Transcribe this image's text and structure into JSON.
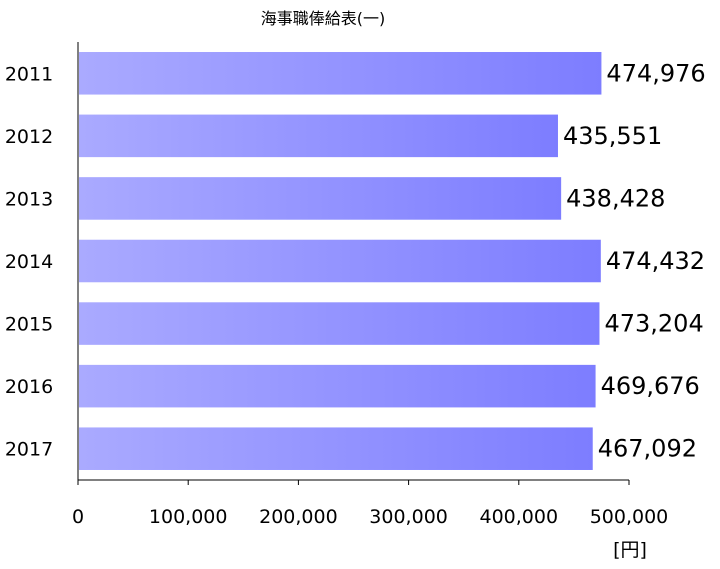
{
  "chart_data": {
    "type": "bar",
    "orientation": "horizontal",
    "title": "海事職俸給表(一)",
    "categories": [
      "2011",
      "2012",
      "2013",
      "2014",
      "2015",
      "2016",
      "2017"
    ],
    "values": [
      474976,
      435551,
      438428,
      474432,
      473204,
      469676,
      467092
    ],
    "value_labels": [
      "474,976",
      "435,551",
      "438,428",
      "474,432",
      "473,204",
      "469,676",
      "467,092"
    ],
    "x_ticks": [
      "0",
      "100,000",
      "200,000",
      "300,000",
      "400,000",
      "500,000"
    ],
    "xlim": [
      0,
      500000
    ],
    "x_unit": "[円]",
    "xlabel": "",
    "ylabel": "",
    "grid": false,
    "bar_color_start": "#aaaaff",
    "bar_color_end": "#7d7dff"
  }
}
